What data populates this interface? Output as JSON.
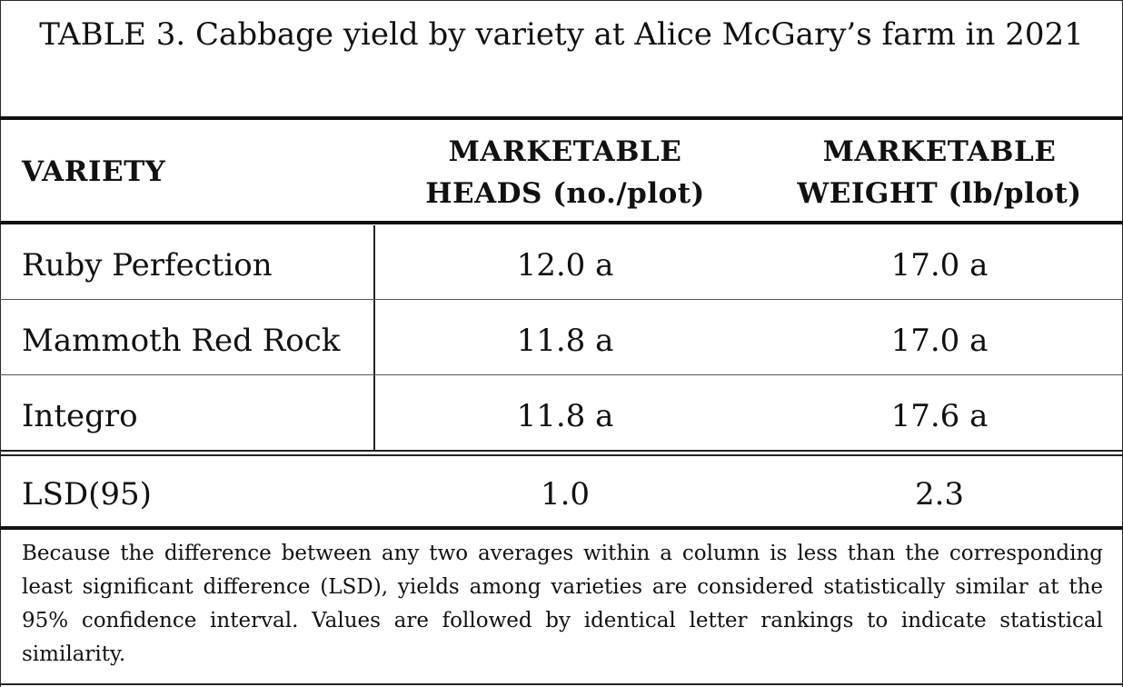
{
  "table": {
    "title": "TABLE 3. Cabbage yield by variety at Alice McGary’s farm in 2021",
    "headers": {
      "variety": "VARIETY",
      "heads_line1": "MARKETABLE",
      "heads_line2": "HEADS (no./plot)",
      "weight_line1": "MARKETABLE",
      "weight_line2": "WEIGHT (lb/plot)"
    },
    "rows": [
      {
        "variety": "Ruby Perfection",
        "heads": "12.0 a",
        "weight": "17.0 a"
      },
      {
        "variety": "Mammoth Red Rock",
        "heads": "11.8 a",
        "weight": "17.0 a"
      },
      {
        "variety": "Integro",
        "heads": "11.8 a",
        "weight": "17.6 a"
      }
    ],
    "lsd": {
      "label": "LSD(95)",
      "heads": "1.0",
      "weight": "2.3"
    },
    "footnote": "Because the difference between any two averages within a column is less than the corresponding least significant difference (LSD), yields among varieties are considered statistically similar at the 95% confidence interval. Values are followed by identical letter rankings to indicate statistical similarity."
  }
}
